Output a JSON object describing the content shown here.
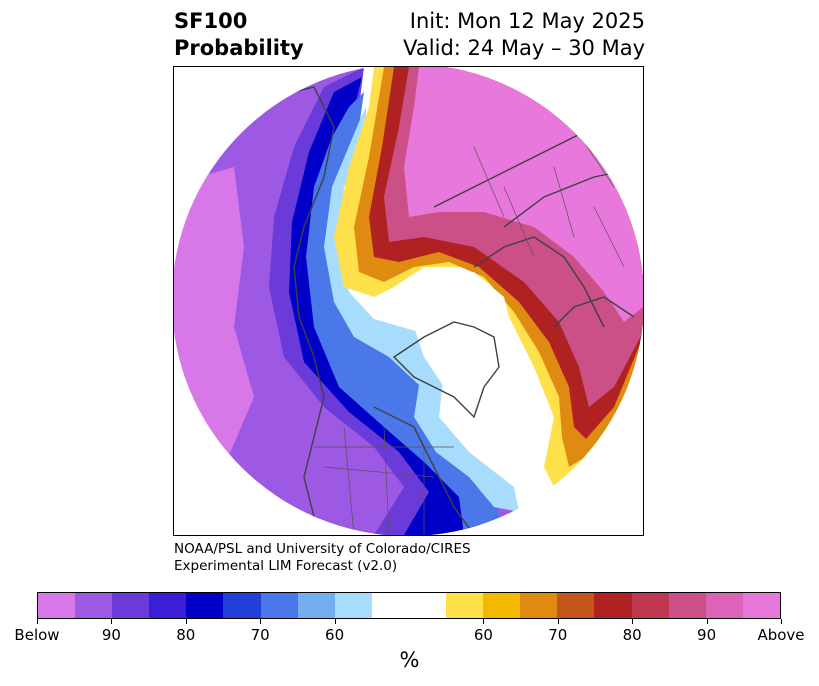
{
  "header": {
    "left_line1": "SF100",
    "left_line2": "Probability",
    "right_line1": "Init: Mon 12 May 2025",
    "right_line2": "Valid: 24 May – 30 May"
  },
  "credit": {
    "line1": "NOAA/PSL and University of Colorado/CIRES",
    "line2": "Experimental LIM Forecast (v2.0)"
  },
  "colorbar": {
    "colors": [
      "#d878e8",
      "#9d58e4",
      "#6a3bd8",
      "#3a1fd6",
      "#0000c8",
      "#2140d8",
      "#4a78e8",
      "#72aef0",
      "#a8dcfc",
      "#ffffff",
      "#ffffff",
      "#fde04a",
      "#f3b800",
      "#df8a10",
      "#c45618",
      "#b02222",
      "#bf3850",
      "#cc5088",
      "#dc64b8",
      "#e878dc"
    ],
    "ticks": [
      "Below",
      "90",
      "80",
      "70",
      "60",
      "60",
      "70",
      "80",
      "90",
      "Above"
    ],
    "units": "%"
  }
}
